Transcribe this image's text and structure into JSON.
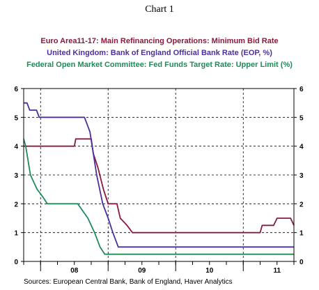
{
  "chart_data": {
    "type": "line",
    "title": "Chart 1",
    "x_tick_labels": [
      "08",
      "09",
      "10",
      "11"
    ],
    "x_range": [
      2007.75,
      2011.75
    ],
    "ylim": [
      0,
      6
    ],
    "y_ticks": [
      0,
      1,
      2,
      3,
      4,
      5,
      6
    ],
    "grid": true,
    "legend": "top",
    "series": [
      {
        "name": "Euro Area11-17: Main Refinancing Operations: Minimum Bid Rate",
        "color": "#8b1a3a",
        "points": [
          [
            2007.75,
            4.0
          ],
          [
            2008.5,
            4.0
          ],
          [
            2008.52,
            4.25
          ],
          [
            2008.75,
            4.25
          ],
          [
            2008.78,
            3.75
          ],
          [
            2008.85,
            3.25
          ],
          [
            2008.93,
            2.5
          ],
          [
            2009.0,
            2.0
          ],
          [
            2009.13,
            2.0
          ],
          [
            2009.18,
            1.5
          ],
          [
            2009.28,
            1.25
          ],
          [
            2009.36,
            1.0
          ],
          [
            2011.25,
            1.0
          ],
          [
            2011.28,
            1.25
          ],
          [
            2011.45,
            1.25
          ],
          [
            2011.5,
            1.5
          ],
          [
            2011.7,
            1.5
          ],
          [
            2011.75,
            1.25
          ]
        ]
      },
      {
        "name": "United Kingdom: Bank of England Official Bank Rate (EOP, %)",
        "color": "#4b2f9e",
        "points": [
          [
            2007.75,
            5.5
          ],
          [
            2007.8,
            5.5
          ],
          [
            2007.84,
            5.25
          ],
          [
            2007.94,
            5.25
          ],
          [
            2007.98,
            5.0
          ],
          [
            2008.65,
            5.0
          ],
          [
            2008.73,
            4.5
          ],
          [
            2008.83,
            3.0
          ],
          [
            2008.92,
            2.0
          ],
          [
            2009.0,
            1.5
          ],
          [
            2009.07,
            1.0
          ],
          [
            2009.15,
            0.5
          ],
          [
            2011.75,
            0.5
          ]
        ]
      },
      {
        "name": "Federal Open Market Committee: Fed Funds Target Rate: Upper Limit (%)",
        "color": "#1f8a5a",
        "points": [
          [
            2007.75,
            4.25
          ],
          [
            2007.78,
            4.0
          ],
          [
            2007.85,
            3.0
          ],
          [
            2007.95,
            2.5
          ],
          [
            2008.03,
            2.25
          ],
          [
            2008.1,
            2.0
          ],
          [
            2008.55,
            2.0
          ],
          [
            2008.7,
            1.5
          ],
          [
            2008.8,
            1.0
          ],
          [
            2008.88,
            0.5
          ],
          [
            2008.95,
            0.25
          ],
          [
            2011.75,
            0.25
          ]
        ]
      }
    ]
  },
  "source": "Sources:  European Central Bank, Bank of England, Haver Analytics"
}
